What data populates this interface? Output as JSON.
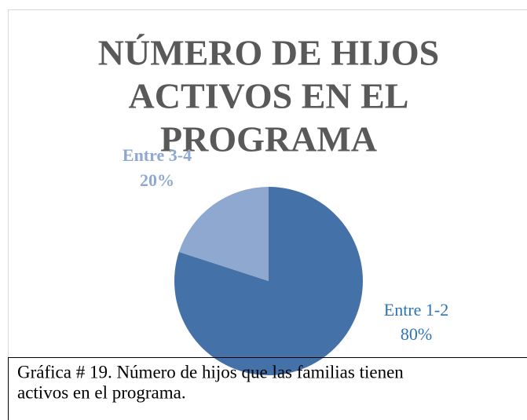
{
  "chart_data": {
    "type": "pie",
    "title": [
      "NÚMERO DE HIJOS",
      "ACTIVOS EN EL",
      "PROGRAMA"
    ],
    "categories": [
      "Entre 1-2",
      "Entre 3-4"
    ],
    "values": [
      80,
      20
    ],
    "value_labels": [
      "80%",
      "20%"
    ],
    "colors": [
      "#4472a8",
      "#8fa8d0"
    ],
    "label_colors": [
      "#2e74b5",
      "#8fa8d0"
    ]
  },
  "caption": [
    "Gráfica # 19. Número de hijos que las familias tienen",
    "activos en el programa."
  ]
}
